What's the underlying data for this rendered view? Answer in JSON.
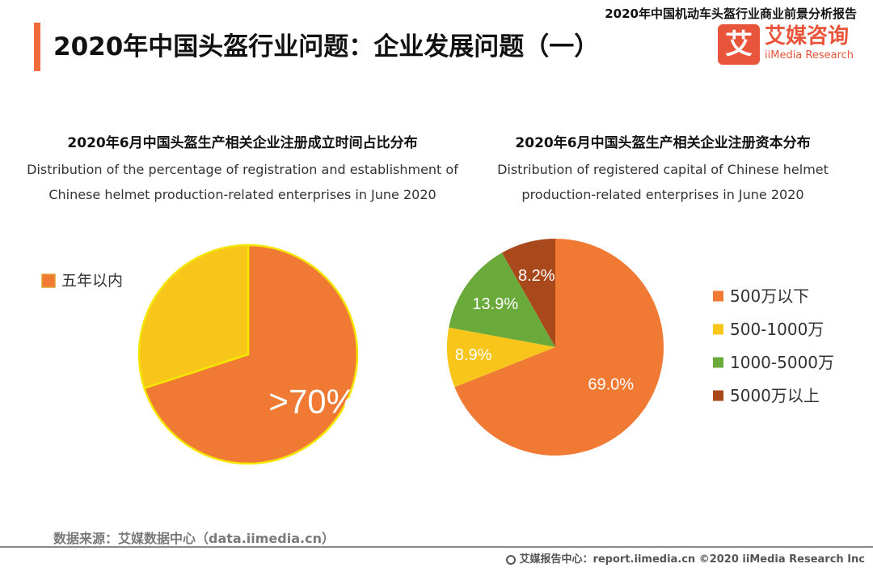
{
  "header": {
    "report_name": "2020年中国机动车头盔行业商业前景分析报告",
    "page_title": "2020年中国头盔行业问题：企业发展问题（一）",
    "logo_mark": "艾",
    "logo_cn": "艾媒咨询",
    "logo_en": "iiMedia Research"
  },
  "colors": {
    "accent": "#f26b3a",
    "orange": "#f07a33",
    "yellow": "#f8c51b",
    "green": "#6aaa3b",
    "brown": "#a9491b"
  },
  "chart_data": [
    {
      "type": "pie",
      "title": "2020年6月中国头盔生产相关企业注册成立时间占比分布",
      "subtitle": "Distribution of the percentage of registration and establishment of Chinese helmet production-related enterprises in June 2020",
      "legend_position": "left",
      "slices": [
        {
          "name": "五年以内",
          "value": 70,
          "label": ">70%",
          "color": "#f07a33"
        },
        {
          "name": "",
          "value": 30,
          "label": "",
          "color": "#f8c51b"
        }
      ]
    },
    {
      "type": "pie",
      "title": "2020年6月中国头盔生产相关企业注册资本分布",
      "subtitle": "Distribution of registered capital of Chinese helmet production-related enterprises in June 2020",
      "legend_position": "right",
      "slices": [
        {
          "name": "500万以下",
          "value": 69.0,
          "label": "69.0%",
          "color": "#f07a33"
        },
        {
          "name": "500-1000万",
          "value": 8.9,
          "label": "8.9%",
          "color": "#f8c51b"
        },
        {
          "name": "1000-5000万",
          "value": 13.9,
          "label": "13.9%",
          "color": "#6aaa3b"
        },
        {
          "name": "5000万以上",
          "value": 8.2,
          "label": "8.2%",
          "color": "#a9491b"
        }
      ]
    }
  ],
  "footer": {
    "source": "数据来源：艾媒数据中心（data.iimedia.cn）",
    "credit": "艾媒报告中心：report.iimedia.cn  ©2020  iiMedia Research  Inc"
  }
}
